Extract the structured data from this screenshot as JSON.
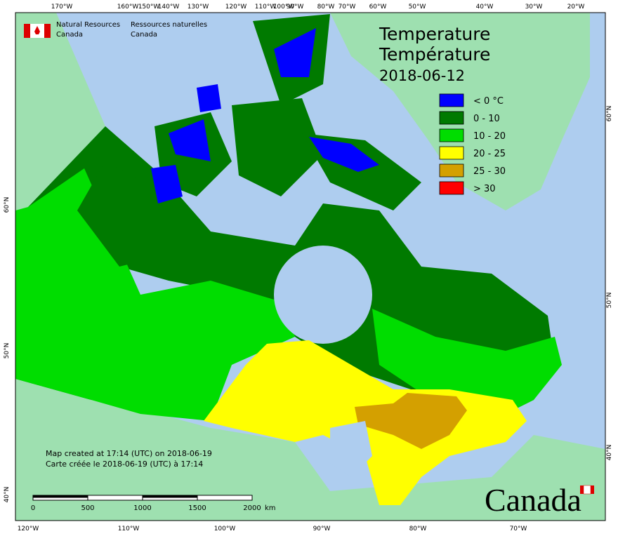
{
  "header": {
    "department_en": [
      "Natural Resources",
      "Canada"
    ],
    "department_fr": [
      "Ressources naturelles",
      "Canada"
    ]
  },
  "title": [
    "Temperature",
    "Température",
    "2018-06-12"
  ],
  "legend": [
    {
      "label": "< 0 °C",
      "color": "#0000ff"
    },
    {
      "label": "0 - 10",
      "color": "#007a00"
    },
    {
      "label": "10 - 20",
      "color": "#00dd00"
    },
    {
      "label": "20 - 25",
      "color": "#ffff00"
    },
    {
      "label": "25 - 30",
      "color": "#d4a000"
    },
    {
      "label": "> 30",
      "color": "#ff0000"
    }
  ],
  "graticule": {
    "top": [
      "170°W",
      "160°W",
      "150°W",
      "140°W",
      "130°W",
      "120°W",
      "110°W",
      "100°W",
      "90°W",
      "80°W",
      "70°W",
      "60°W",
      "50°W",
      "40°W",
      "30°W",
      "20°W"
    ],
    "bottom": [
      "120°W",
      "110°W",
      "100°W",
      "90°W",
      "80°W",
      "70°W"
    ],
    "left": [
      "60°N",
      "50°N",
      "40°N"
    ],
    "right": [
      "60°N",
      "50°N",
      "40°N"
    ]
  },
  "footer": [
    "Map created at 17:14 (UTC) on 2018-06-19",
    "Carte créée le 2018-06-19 (UTC) à 17:14"
  ],
  "scale_bar": {
    "ticks": [
      0,
      500,
      1000,
      1500,
      2000
    ],
    "unit": "km"
  },
  "wordmark": "Canada"
}
